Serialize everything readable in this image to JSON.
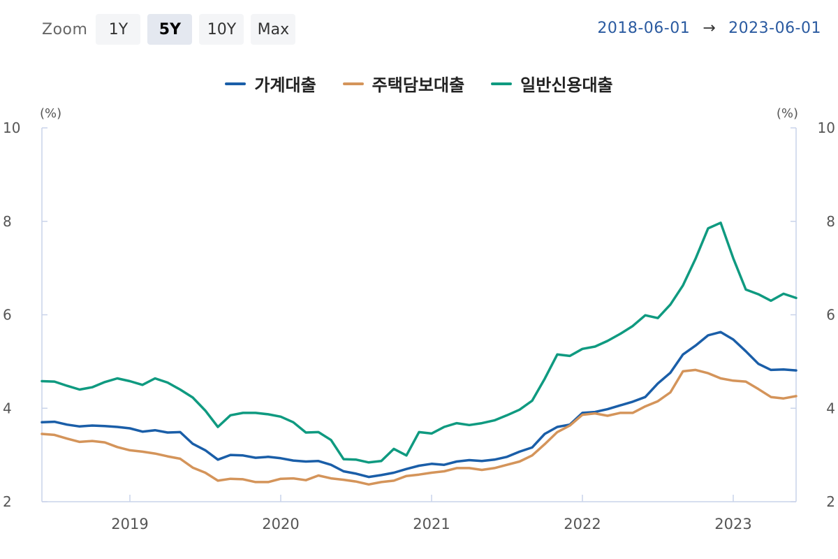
{
  "toolbar": {
    "zoom_label": "Zoom",
    "buttons": [
      "1Y",
      "5Y",
      "10Y",
      "Max"
    ],
    "active": "5Y"
  },
  "range": {
    "start": "2018-06-01",
    "arrow": "→",
    "end": "2023-06-01"
  },
  "colors": {
    "household": "#1a5ea8",
    "mortgage": "#d4945a",
    "credit": "#0f9a80",
    "axis": "#c9d3ea",
    "tick_text": "#555555"
  },
  "chart_data": {
    "type": "line",
    "x_start": "2018-06",
    "x_end": "2023-06",
    "xticks": [
      "2019",
      "2020",
      "2021",
      "2022",
      "2023"
    ],
    "y_unit_left": "(%)",
    "y_unit_right": "(%)",
    "ylim": [
      2,
      10
    ],
    "yticks": [
      2,
      4,
      6,
      8,
      10
    ],
    "legend_position": "top-center",
    "grid": false,
    "series": [
      {
        "name": "가계대출",
        "color_key": "household",
        "values": [
          3.7,
          3.71,
          3.65,
          3.61,
          3.63,
          3.62,
          3.6,
          3.57,
          3.5,
          3.53,
          3.48,
          3.49,
          3.24,
          3.1,
          2.9,
          3.0,
          2.99,
          2.94,
          2.96,
          2.93,
          2.88,
          2.86,
          2.87,
          2.79,
          2.65,
          2.6,
          2.53,
          2.57,
          2.62,
          2.7,
          2.77,
          2.81,
          2.79,
          2.86,
          2.89,
          2.87,
          2.9,
          2.96,
          3.07,
          3.16,
          3.45,
          3.6,
          3.65,
          3.9,
          3.92,
          3.98,
          4.06,
          4.14,
          4.24,
          4.53,
          4.76,
          5.15,
          5.34,
          5.56,
          5.63,
          5.47,
          5.22,
          4.95,
          4.82,
          4.83,
          4.81
        ]
      },
      {
        "name": "주택담보대출",
        "color_key": "mortgage",
        "values": [
          3.45,
          3.43,
          3.35,
          3.28,
          3.3,
          3.27,
          3.17,
          3.1,
          3.07,
          3.03,
          2.97,
          2.92,
          2.73,
          2.62,
          2.45,
          2.49,
          2.48,
          2.42,
          2.42,
          2.49,
          2.5,
          2.46,
          2.56,
          2.5,
          2.47,
          2.43,
          2.37,
          2.42,
          2.45,
          2.55,
          2.58,
          2.62,
          2.65,
          2.72,
          2.72,
          2.68,
          2.72,
          2.79,
          2.86,
          2.99,
          3.23,
          3.49,
          3.63,
          3.86,
          3.89,
          3.84,
          3.9,
          3.9,
          4.04,
          4.15,
          4.34,
          4.79,
          4.82,
          4.75,
          4.64,
          4.59,
          4.57,
          4.41,
          4.24,
          4.21,
          4.26
        ]
      },
      {
        "name": "일반신용대출",
        "color_key": "credit",
        "values": [
          4.58,
          4.57,
          4.48,
          4.4,
          4.45,
          4.56,
          4.64,
          4.58,
          4.5,
          4.64,
          4.55,
          4.4,
          4.23,
          3.95,
          3.6,
          3.85,
          3.9,
          3.9,
          3.87,
          3.82,
          3.7,
          3.48,
          3.49,
          3.32,
          2.91,
          2.9,
          2.84,
          2.87,
          3.13,
          2.99,
          3.49,
          3.46,
          3.6,
          3.68,
          3.64,
          3.68,
          3.74,
          3.85,
          3.97,
          4.16,
          4.63,
          5.15,
          5.12,
          5.27,
          5.32,
          5.44,
          5.59,
          5.76,
          5.99,
          5.93,
          6.22,
          6.63,
          7.2,
          7.85,
          7.97,
          7.21,
          6.54,
          6.44,
          6.3,
          6.45,
          6.36
        ]
      }
    ]
  }
}
